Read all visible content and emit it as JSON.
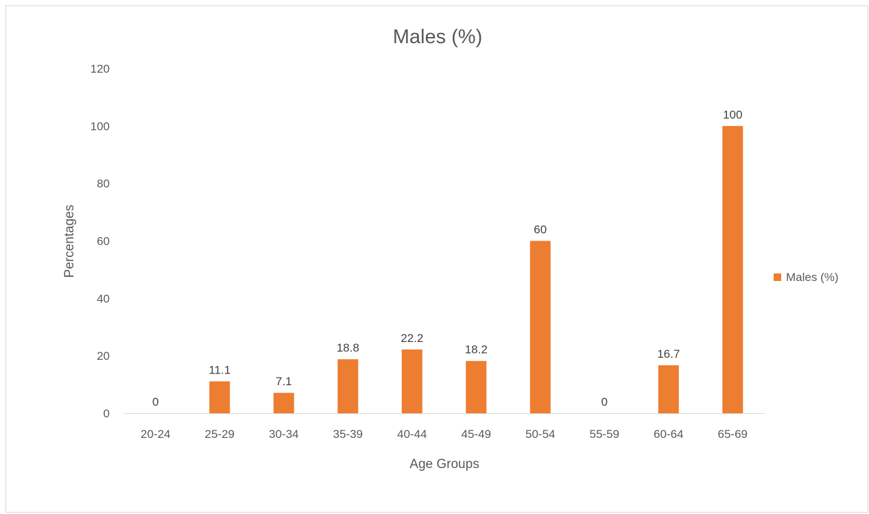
{
  "chart_data": {
    "type": "bar",
    "title": "Males (%)",
    "xlabel": "Age Groups",
    "ylabel": "Percentages",
    "categories": [
      "20-24",
      "25-29",
      "30-34",
      "35-39",
      "40-44",
      "45-49",
      "50-54",
      "55-59",
      "60-64",
      "65-69"
    ],
    "series": [
      {
        "name": "Males (%)",
        "values": [
          0,
          11.1,
          7.1,
          18.8,
          22.2,
          18.2,
          60,
          0,
          16.7,
          100
        ],
        "data_labels": [
          "0",
          "11.1",
          "7.1",
          "18.8",
          "22.2",
          "18.2",
          "60",
          "0",
          "16.7",
          "100"
        ],
        "color": "#ED7D31"
      }
    ],
    "ylim": [
      0,
      120
    ],
    "yticks": [
      "0",
      "20",
      "40",
      "60",
      "80",
      "100",
      "120"
    ],
    "grid": false,
    "legend_position": "right"
  }
}
